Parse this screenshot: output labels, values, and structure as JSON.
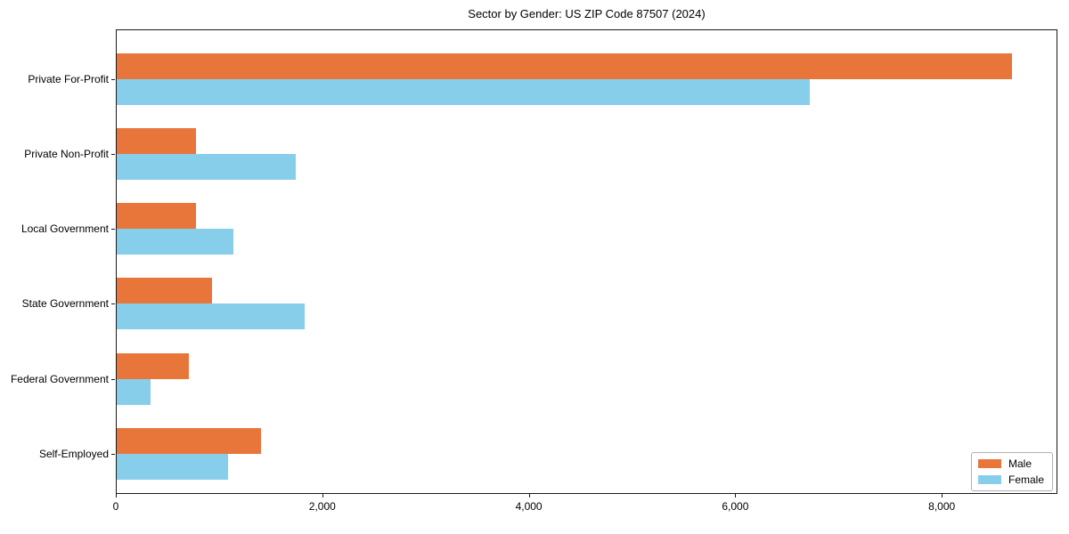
{
  "chart_data": {
    "type": "bar",
    "orientation": "horizontal",
    "title": "Sector by Gender: US ZIP Code 87507 (2024)",
    "categories": [
      "Private For-Profit",
      "Private Non-Profit",
      "Local Government",
      "State Government",
      "Federal Government",
      "Self-Employed"
    ],
    "series": [
      {
        "name": "Male",
        "color": "#E8763B",
        "values": [
          8680,
          780,
          780,
          930,
          710,
          1410
        ]
      },
      {
        "name": "Female",
        "color": "#87CEEB",
        "values": [
          6720,
          1740,
          1140,
          1830,
          340,
          1090
        ]
      }
    ],
    "xlabel": "",
    "ylabel": "",
    "xlim": [
      0,
      9120
    ],
    "xticks": [
      {
        "value": 0,
        "label": "0"
      },
      {
        "value": 2000,
        "label": "2,000"
      },
      {
        "value": 4000,
        "label": "4,000"
      },
      {
        "value": 6000,
        "label": "6,000"
      },
      {
        "value": 8000,
        "label": "8,000"
      }
    ],
    "grid": false,
    "legend": {
      "position": "lower right",
      "entries": [
        "Male",
        "Female"
      ]
    }
  }
}
